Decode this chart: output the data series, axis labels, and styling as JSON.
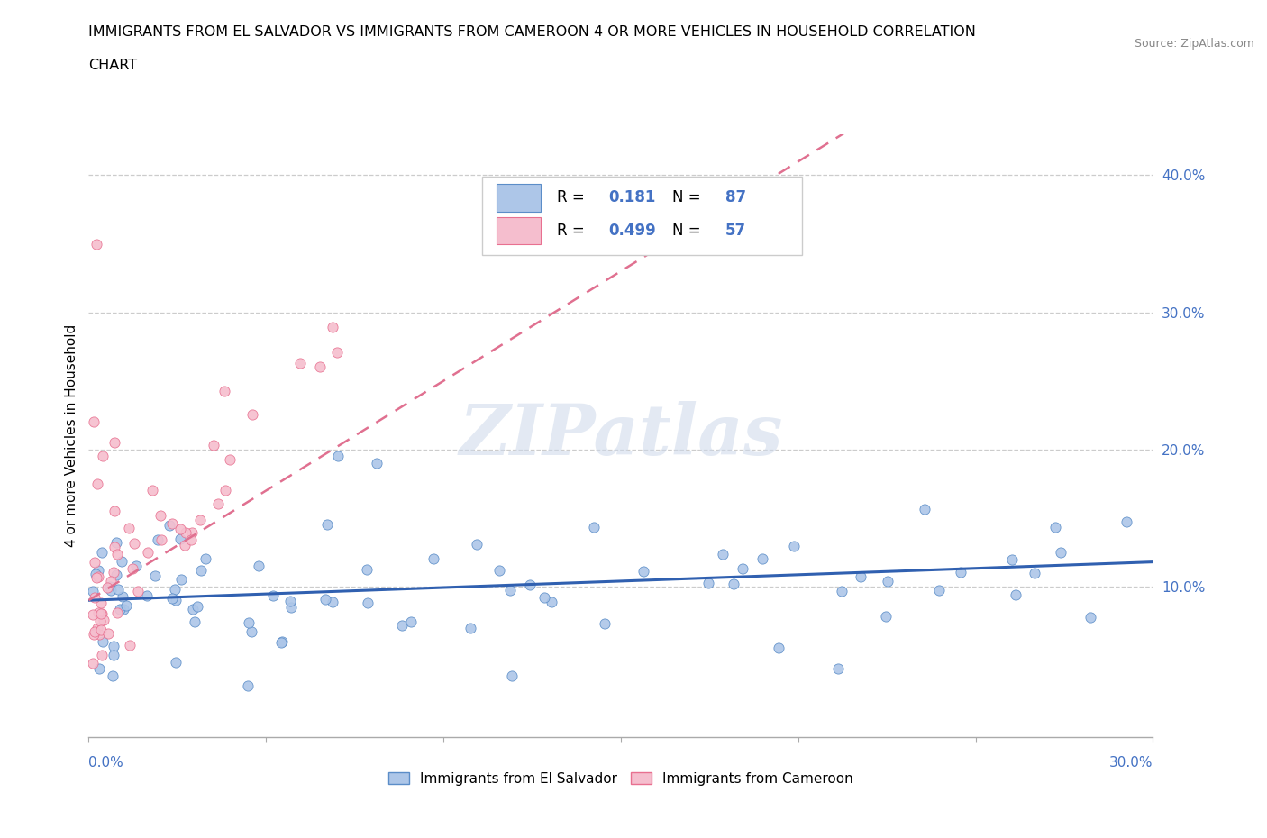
{
  "title_line1": "IMMIGRANTS FROM EL SALVADOR VS IMMIGRANTS FROM CAMEROON 4 OR MORE VEHICLES IN HOUSEHOLD CORRELATION",
  "title_line2": "CHART",
  "source": "Source: ZipAtlas.com",
  "ylabel": "4 or more Vehicles in Household",
  "watermark": "ZIPatlas",
  "el_salvador_color": "#adc6e8",
  "el_salvador_edge_color": "#5b8dc8",
  "el_salvador_line_color": "#3060b0",
  "cameroon_color": "#f5bece",
  "cameroon_edge_color": "#e87090",
  "cameroon_line_color": "#e07090",
  "R_el_salvador": 0.181,
  "N_el_salvador": 87,
  "R_cameroon": 0.499,
  "N_cameroon": 57,
  "xlim": [
    0.0,
    0.3
  ],
  "ylim": [
    -0.01,
    0.43
  ],
  "ytick_vals": [
    0.1,
    0.2,
    0.3,
    0.4
  ],
  "legend_color": "#4472c4"
}
